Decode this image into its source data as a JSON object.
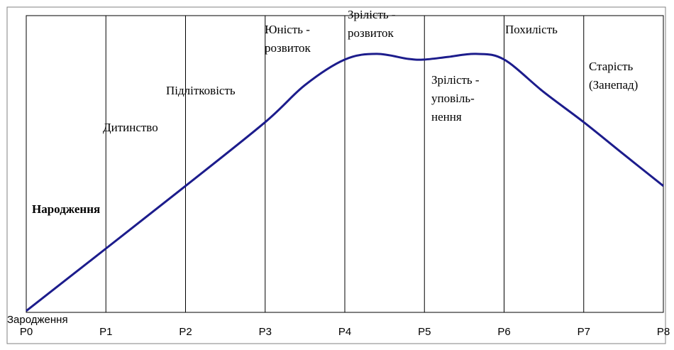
{
  "chart_data": {
    "type": "line",
    "x": [
      0,
      1,
      2,
      3,
      3.5,
      4,
      4.4,
      4.8,
      5,
      5.3,
      5.65,
      6,
      6.5,
      7,
      7.5,
      8
    ],
    "series": [
      {
        "color": "#1c1c8c",
        "values": [
          0.5,
          21.5,
          42.6,
          64.1,
          76.6,
          85.2,
          87.1,
          85.4,
          85.2,
          86.1,
          87.1,
          85.2,
          74.2,
          64.1,
          53.3,
          42.6
        ]
      }
    ],
    "xlim": [
      0,
      8
    ],
    "xticks": [
      {
        "value": 0,
        "label": "P0"
      },
      {
        "value": 1,
        "label": "P1"
      },
      {
        "value": 2,
        "label": "P2"
      },
      {
        "value": 3,
        "label": "P3"
      },
      {
        "value": 4,
        "label": "P4"
      },
      {
        "value": 5,
        "label": "P5"
      },
      {
        "value": 6,
        "label": "P6"
      },
      {
        "value": 7,
        "label": "P7"
      },
      {
        "value": 8,
        "label": "P8"
      }
    ],
    "ylim": [
      0,
      100
    ],
    "grid": true,
    "origin_label": "Зародження",
    "annotations": [
      [
        "Народження"
      ],
      [
        "Дитинство"
      ],
      [
        "Підлітковість"
      ],
      [
        "Юність -",
        "розвиток"
      ],
      [
        "Зрілість -",
        "розвиток"
      ],
      [
        "Зрілість -",
        "уповіль-",
        "нення"
      ],
      [
        "Похилість"
      ],
      [
        "Старість",
        "(Занепад)"
      ]
    ]
  }
}
